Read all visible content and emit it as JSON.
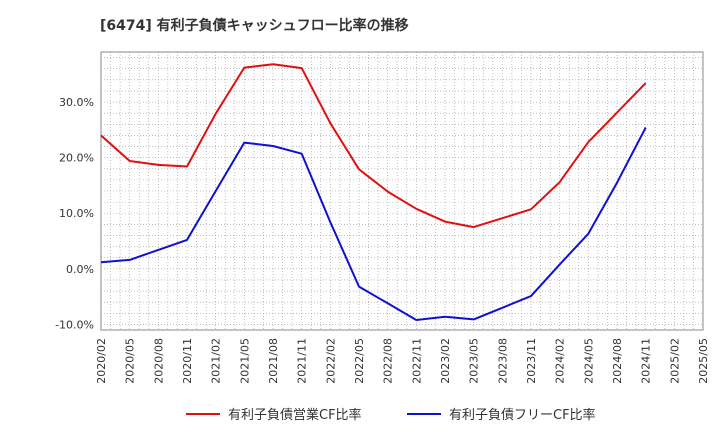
{
  "chart_data": {
    "type": "line",
    "title": "[6474]  有利子負債キャッシュフロー比率の推移",
    "x_categories": [
      "2020/02",
      "2020/05",
      "2020/08",
      "2020/11",
      "2021/02",
      "2021/05",
      "2021/08",
      "2021/11",
      "2022/02",
      "2022/05",
      "2022/08",
      "2022/11",
      "2023/02",
      "2023/05",
      "2023/08",
      "2023/11",
      "2024/02",
      "2024/05",
      "2024/08",
      "2024/11",
      "2025/02",
      "2025/05"
    ],
    "y_ticks": [
      -10,
      0,
      10,
      20,
      30
    ],
    "y_tick_labels": [
      "-10.0%",
      "0.0%",
      "10.0%",
      "20.0%",
      "30.0%"
    ],
    "ylim": [
      -11,
      39
    ],
    "grid": true,
    "legend_position": "bottom",
    "series": [
      {
        "name": "有利子負債営業CF比率",
        "color": "#e01010",
        "values": [
          24.0,
          19.4,
          18.7,
          18.4,
          27.9,
          36.2,
          36.8,
          36.1,
          26.2,
          17.9,
          13.9,
          10.8,
          8.5,
          7.5,
          9.1,
          10.7,
          15.6,
          22.8,
          28.1,
          33.4,
          null,
          null
        ]
      },
      {
        "name": "有利子負債フリーCF比率",
        "color": "#1010d0",
        "values": [
          1.2,
          1.6,
          3.4,
          5.2,
          14.0,
          22.7,
          22.1,
          20.7,
          8.4,
          -3.2,
          -6.2,
          -9.2,
          -8.6,
          -9.1,
          -7.0,
          -4.9,
          0.8,
          6.3,
          15.5,
          25.4,
          null,
          null
        ]
      }
    ]
  }
}
